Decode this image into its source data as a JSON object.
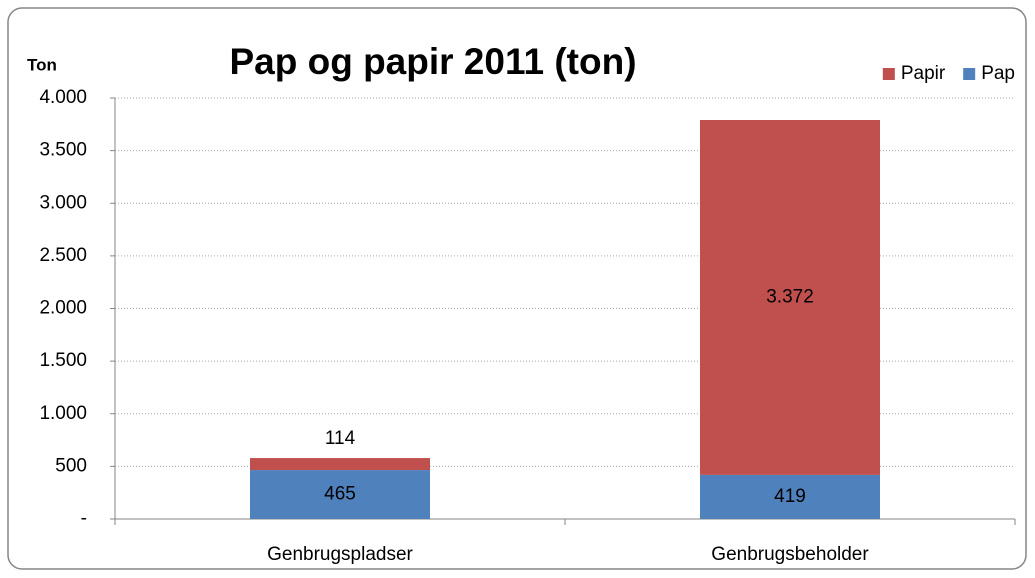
{
  "chart_data": {
    "type": "bar",
    "stacked": true,
    "title": "Pap og papir 2011 (ton)",
    "y_label": "Ton",
    "categories": [
      "Genbrugspladser",
      "Genbrugsbeholder"
    ],
    "series": [
      {
        "name": "Pap",
        "color": "#4f81bd",
        "values": [
          465,
          419
        ]
      },
      {
        "name": "Papir",
        "color": "#c0504d",
        "values": [
          114,
          3372
        ],
        "value_labels": [
          "114",
          "3.372"
        ]
      }
    ],
    "ylim": [
      0,
      4000
    ],
    "yticks": [
      {
        "value": 0,
        "label": "-"
      },
      500,
      {
        "value": 1000,
        "label": "1.000"
      },
      {
        "value": 1500,
        "label": "1.500"
      },
      {
        "value": 2000,
        "label": "2.000"
      },
      {
        "value": 2500,
        "label": "2.500"
      },
      {
        "value": 3000,
        "label": "3.000"
      },
      {
        "value": 3500,
        "label": "3.500"
      },
      {
        "value": 4000,
        "label": "4.000"
      }
    ],
    "grid": true,
    "legend": "top-right"
  }
}
